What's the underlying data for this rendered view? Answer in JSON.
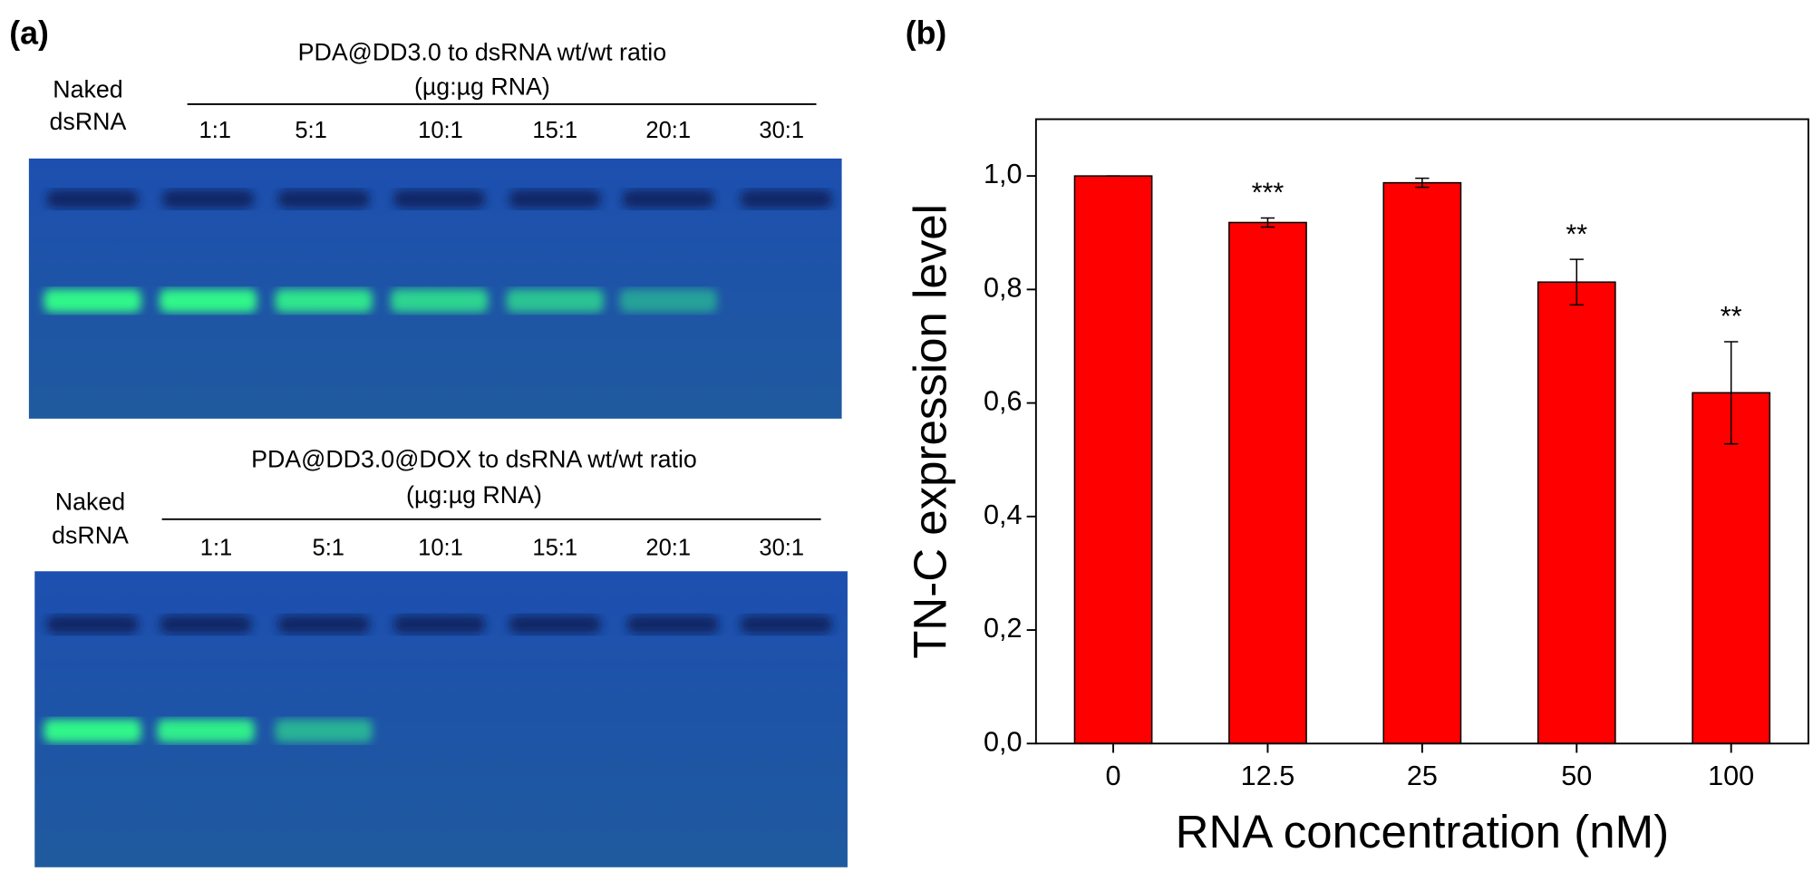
{
  "panel_a": {
    "label": "(a)",
    "gels": [
      {
        "title": "PDA@DD3.0 to dsRNA wt/wt ratio",
        "subtitle": "(µg:µg RNA)",
        "control": [
          "Naked",
          "dsRNA"
        ],
        "lanes": [
          "1:1",
          "5:1",
          "10:1",
          "15:1",
          "20:1",
          "30:1"
        ]
      },
      {
        "title": "PDA@DD3.0@DOX to dsRNA wt/wt ratio",
        "subtitle": "(µg:µg RNA)",
        "control": [
          "Naked",
          "dsRNA"
        ],
        "lanes": [
          "1:1",
          "5:1",
          "10:1",
          "15:1",
          "20:1",
          "30:1"
        ]
      }
    ]
  },
  "chart_data": {
    "type": "bar",
    "panel_label": "(b)",
    "x_label": "RNA concentration (nM)",
    "y_label": "TN-C expression level",
    "categories": [
      "0",
      "12.5",
      "25",
      "50",
      "100"
    ],
    "values": [
      1.0,
      0.918,
      0.988,
      0.813,
      0.618
    ],
    "errors": [
      0,
      0.008,
      0.008,
      0.04,
      0.09
    ],
    "annotations": [
      null,
      "***",
      null,
      "**",
      "**"
    ],
    "color": "#ff0000",
    "ylim": [
      0,
      1.1
    ],
    "yticks": [
      {
        "value": 0,
        "label": "0,0"
      },
      {
        "value": 0.2,
        "label": "0,2"
      },
      {
        "value": 0.4,
        "label": "0,4"
      },
      {
        "value": 0.6,
        "label": "0,6"
      },
      {
        "value": 0.8,
        "label": "0,8"
      },
      {
        "value": 1.0,
        "label": "1,0"
      }
    ]
  }
}
